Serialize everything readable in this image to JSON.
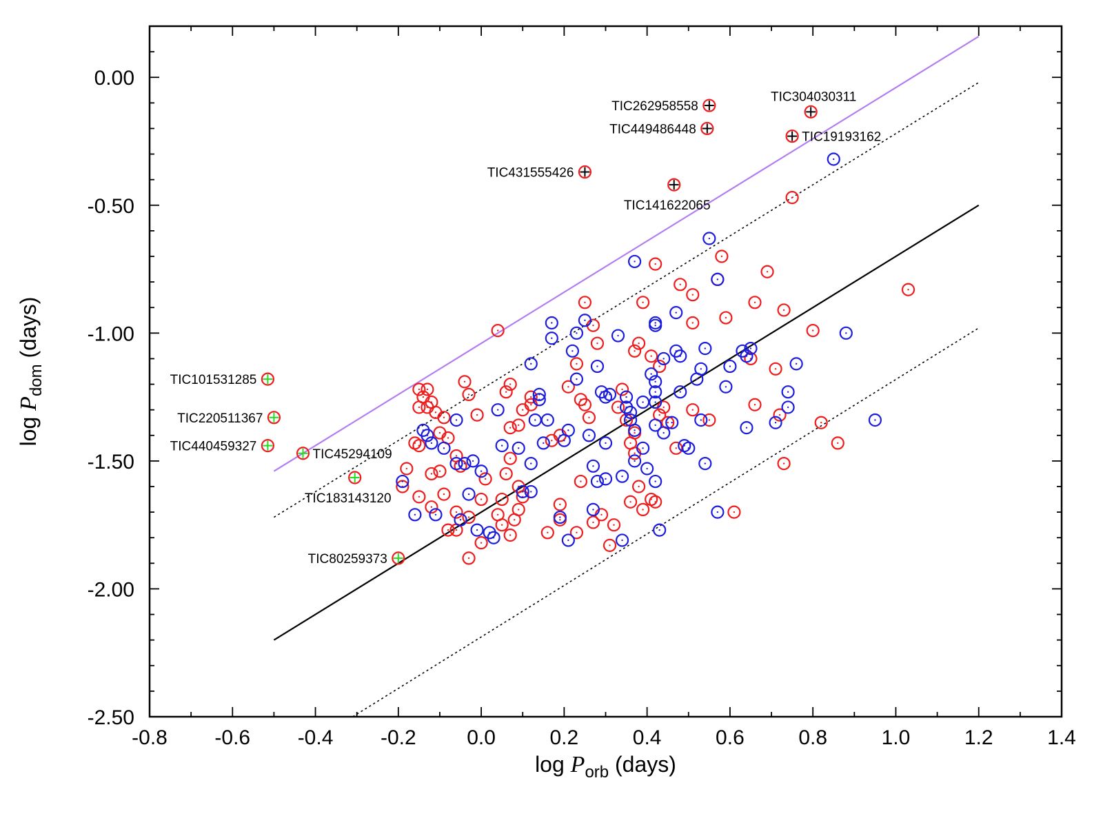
{
  "chart_data": {
    "type": "scatter",
    "title": "",
    "xlabel": {
      "prefix": "log ",
      "variable": "P",
      "subscript": "orb",
      "suffix": " (days)"
    },
    "ylabel": {
      "prefix": "log ",
      "variable": "P",
      "subscript": "dom",
      "suffix": " (days)"
    },
    "xlim": [
      -0.8,
      1.4
    ],
    "ylim": [
      -2.5,
      0.2
    ],
    "grid": false,
    "legend": "none",
    "x_ticks": [
      {
        "v": -0.8,
        "label": "-0.8"
      },
      {
        "v": -0.6,
        "label": "-0.6"
      },
      {
        "v": -0.4,
        "label": "-0.4"
      },
      {
        "v": -0.2,
        "label": "-0.2"
      },
      {
        "v": 0.0,
        "label": "0.0"
      },
      {
        "v": 0.2,
        "label": "0.2"
      },
      {
        "v": 0.4,
        "label": "0.4"
      },
      {
        "v": 0.6,
        "label": "0.6"
      },
      {
        "v": 0.8,
        "label": "0.8"
      },
      {
        "v": 1.0,
        "label": "1.0"
      },
      {
        "v": 1.2,
        "label": "1.2"
      },
      {
        "v": 1.4,
        "label": "1.4"
      }
    ],
    "y_ticks": [
      {
        "v": 0.0,
        "label": "0.00"
      },
      {
        "v": -0.5,
        "label": "-0.50"
      },
      {
        "v": -1.0,
        "label": "-1.00"
      },
      {
        "v": -1.5,
        "label": "-1.50"
      },
      {
        "v": -2.0,
        "label": "-2.00"
      },
      {
        "v": -2.5,
        "label": "-2.50"
      }
    ],
    "colors": {
      "red": "#ee1c1c",
      "blue": "#1c1cdd",
      "purple": "#b27cf0",
      "green": "#22dd22",
      "black": "#000000"
    },
    "lines": [
      {
        "style": "solid",
        "color": "#000000",
        "points": [
          [
            -0.5,
            -2.2
          ],
          [
            1.2,
            -0.5
          ]
        ]
      },
      {
        "style": "dotted",
        "color": "#000000",
        "points": [
          [
            -0.5,
            -1.72
          ],
          [
            1.2,
            -0.02
          ]
        ]
      },
      {
        "style": "dotted",
        "color": "#000000",
        "points": [
          [
            -0.31,
            -2.5
          ],
          [
            1.2,
            -0.98
          ]
        ]
      },
      {
        "style": "solid",
        "color": "#b27cf0",
        "points": [
          [
            -0.5,
            -1.54
          ],
          [
            1.2,
            0.16
          ]
        ]
      }
    ],
    "series": [
      {
        "color": "#ee1c1c",
        "marker": "circle-dot",
        "points": [
          [
            0.04,
            -0.99
          ],
          [
            -0.15,
            -1.22
          ],
          [
            -0.14,
            -1.25
          ],
          [
            -0.13,
            -1.22
          ],
          [
            -0.12,
            -1.27
          ],
          [
            -0.15,
            -1.29
          ],
          [
            -0.13,
            -1.29
          ],
          [
            -0.11,
            -1.31
          ],
          [
            -0.09,
            -1.33
          ],
          [
            -0.16,
            -1.43
          ],
          [
            -0.15,
            -1.44
          ],
          [
            -0.1,
            -1.39
          ],
          [
            -0.08,
            -1.41
          ],
          [
            -0.12,
            -1.55
          ],
          [
            -0.1,
            -1.54
          ],
          [
            -0.06,
            -1.48
          ],
          [
            -0.05,
            -1.52
          ],
          [
            -0.18,
            -1.53
          ],
          [
            -0.19,
            -1.6
          ],
          [
            -0.15,
            -1.64
          ],
          [
            -0.12,
            -1.68
          ],
          [
            -0.09,
            -1.63
          ],
          [
            -0.06,
            -1.7
          ],
          [
            -0.03,
            -1.72
          ],
          [
            -0.08,
            -1.77
          ],
          [
            -0.06,
            -1.77
          ],
          [
            -0.04,
            -1.19
          ],
          [
            -0.03,
            -1.24
          ],
          [
            -0.01,
            -1.32
          ],
          [
            0.0,
            -1.65
          ],
          [
            0.01,
            -1.57
          ],
          [
            0.0,
            -1.82
          ],
          [
            -0.03,
            -1.88
          ],
          [
            0.04,
            -1.71
          ],
          [
            0.05,
            -1.65
          ],
          [
            0.06,
            -1.55
          ],
          [
            0.07,
            -1.49
          ],
          [
            0.06,
            -1.23
          ],
          [
            0.07,
            -1.2
          ],
          [
            0.07,
            -1.37
          ],
          [
            0.09,
            -1.36
          ],
          [
            0.09,
            -1.6
          ],
          [
            0.09,
            -1.69
          ],
          [
            0.1,
            -1.64
          ],
          [
            0.1,
            -1.3
          ],
          [
            0.12,
            -1.25
          ],
          [
            0.12,
            -1.28
          ],
          [
            0.05,
            -1.75
          ],
          [
            0.07,
            -1.79
          ],
          [
            0.08,
            -1.73
          ],
          [
            0.16,
            -1.78
          ],
          [
            0.17,
            -1.42
          ],
          [
            0.19,
            -1.4
          ],
          [
            0.19,
            -1.67
          ],
          [
            0.19,
            -1.73
          ],
          [
            0.23,
            -1.78
          ],
          [
            0.24,
            -1.58
          ],
          [
            0.27,
            -1.74
          ],
          [
            0.29,
            -1.71
          ],
          [
            0.31,
            -1.83
          ],
          [
            0.32,
            -1.75
          ],
          [
            0.21,
            -1.21
          ],
          [
            0.23,
            -1.12
          ],
          [
            0.24,
            -1.26
          ],
          [
            0.25,
            -1.28
          ],
          [
            0.26,
            -1.33
          ],
          [
            0.25,
            -0.88
          ],
          [
            0.27,
            -0.97
          ],
          [
            0.28,
            -1.04
          ],
          [
            0.34,
            -1.22
          ],
          [
            0.33,
            -1.29
          ],
          [
            0.35,
            -1.34
          ],
          [
            0.36,
            -1.43
          ],
          [
            0.37,
            -1.07
          ],
          [
            0.38,
            -1.04
          ],
          [
            0.37,
            -1.39
          ],
          [
            0.37,
            -1.47
          ],
          [
            0.38,
            -1.6
          ],
          [
            0.36,
            -1.66
          ],
          [
            0.39,
            -1.69
          ],
          [
            0.41,
            -1.65
          ],
          [
            0.42,
            -1.66
          ],
          [
            0.42,
            -0.73
          ],
          [
            0.39,
            -0.88
          ],
          [
            0.41,
            -1.09
          ],
          [
            0.43,
            -1.13
          ],
          [
            0.44,
            -1.29
          ],
          [
            0.43,
            -1.32
          ],
          [
            0.45,
            -1.35
          ],
          [
            0.47,
            -1.45
          ],
          [
            0.48,
            -0.81
          ],
          [
            0.51,
            -0.85
          ],
          [
            0.51,
            -0.96
          ],
          [
            0.51,
            -1.3
          ],
          [
            0.55,
            -1.34
          ],
          [
            0.57,
            -0.79
          ],
          [
            0.58,
            -0.7
          ],
          [
            0.59,
            -0.94
          ],
          [
            0.65,
            -1.1
          ],
          [
            0.66,
            -0.88
          ],
          [
            0.66,
            -1.28
          ],
          [
            0.61,
            -1.7
          ],
          [
            0.69,
            -0.76
          ],
          [
            0.71,
            -1.14
          ],
          [
            0.72,
            -1.32
          ],
          [
            0.73,
            -0.91
          ],
          [
            0.73,
            -1.51
          ],
          [
            0.75,
            -0.47
          ],
          [
            0.8,
            -0.99
          ],
          [
            0.82,
            -1.35
          ],
          [
            0.86,
            -1.43
          ],
          [
            1.03,
            -0.83
          ]
        ]
      },
      {
        "color": "#1c1cdd",
        "marker": "circle-dot",
        "points": [
          [
            -0.19,
            -1.58
          ],
          [
            -0.16,
            -1.71
          ],
          [
            -0.14,
            -1.38
          ],
          [
            -0.13,
            -1.4
          ],
          [
            -0.12,
            -1.43
          ],
          [
            -0.11,
            -1.71
          ],
          [
            -0.09,
            -1.45
          ],
          [
            -0.06,
            -1.34
          ],
          [
            -0.06,
            -1.51
          ],
          [
            -0.05,
            -1.73
          ],
          [
            -0.04,
            -1.51
          ],
          [
            -0.03,
            -1.63
          ],
          [
            -0.02,
            -1.5
          ],
          [
            -0.01,
            -1.77
          ],
          [
            0.0,
            -1.54
          ],
          [
            0.02,
            -1.78
          ],
          [
            0.03,
            -1.8
          ],
          [
            0.04,
            -1.3
          ],
          [
            0.05,
            -1.44
          ],
          [
            0.09,
            -1.45
          ],
          [
            0.1,
            -1.62
          ],
          [
            0.12,
            -1.51
          ],
          [
            0.12,
            -1.62
          ],
          [
            0.12,
            -1.12
          ],
          [
            0.13,
            -1.34
          ],
          [
            0.14,
            -1.24
          ],
          [
            0.14,
            -1.26
          ],
          [
            0.15,
            -1.43
          ],
          [
            0.16,
            -1.34
          ],
          [
            0.17,
            -1.02
          ],
          [
            0.17,
            -0.96
          ],
          [
            0.19,
            -1.72
          ],
          [
            0.2,
            -1.42
          ],
          [
            0.21,
            -1.38
          ],
          [
            0.21,
            -1.81
          ],
          [
            0.22,
            -1.07
          ],
          [
            0.23,
            -1.18
          ],
          [
            0.23,
            -1.0
          ],
          [
            0.25,
            -0.95
          ],
          [
            0.26,
            -1.4
          ],
          [
            0.27,
            -1.52
          ],
          [
            0.27,
            -1.69
          ],
          [
            0.28,
            -1.58
          ],
          [
            0.28,
            -1.13
          ],
          [
            0.29,
            -1.23
          ],
          [
            0.3,
            -1.25
          ],
          [
            0.31,
            -1.24
          ],
          [
            0.3,
            -1.43
          ],
          [
            0.3,
            -1.57
          ],
          [
            0.33,
            -1.01
          ],
          [
            0.34,
            -1.56
          ],
          [
            0.34,
            -1.81
          ],
          [
            0.35,
            -1.25
          ],
          [
            0.35,
            -1.29
          ],
          [
            0.36,
            -1.31
          ],
          [
            0.36,
            -1.34
          ],
          [
            0.37,
            -0.72
          ],
          [
            0.37,
            -1.38
          ],
          [
            0.37,
            -1.5
          ],
          [
            0.39,
            -1.27
          ],
          [
            0.39,
            -1.45
          ],
          [
            0.4,
            -1.53
          ],
          [
            0.41,
            -1.16
          ],
          [
            0.42,
            -0.96
          ],
          [
            0.42,
            -0.97
          ],
          [
            0.42,
            -1.19
          ],
          [
            0.42,
            -1.23
          ],
          [
            0.42,
            -1.27
          ],
          [
            0.42,
            -1.36
          ],
          [
            0.42,
            -1.58
          ],
          [
            0.43,
            -1.77
          ],
          [
            0.44,
            -1.1
          ],
          [
            0.44,
            -1.39
          ],
          [
            0.46,
            -1.35
          ],
          [
            0.47,
            -0.92
          ],
          [
            0.47,
            -1.07
          ],
          [
            0.48,
            -1.09
          ],
          [
            0.48,
            -1.23
          ],
          [
            0.49,
            -1.44
          ],
          [
            0.5,
            -1.45
          ],
          [
            0.52,
            -1.18
          ],
          [
            0.53,
            -1.14
          ],
          [
            0.53,
            -1.34
          ],
          [
            0.54,
            -1.06
          ],
          [
            0.54,
            -1.51
          ],
          [
            0.55,
            -0.63
          ],
          [
            0.57,
            -0.79
          ],
          [
            0.57,
            -1.7
          ],
          [
            0.59,
            -1.21
          ],
          [
            0.6,
            -1.13
          ],
          [
            0.63,
            -1.07
          ],
          [
            0.64,
            -1.09
          ],
          [
            0.64,
            -1.37
          ],
          [
            0.65,
            -1.06
          ],
          [
            0.71,
            -1.35
          ],
          [
            0.74,
            -1.23
          ],
          [
            0.74,
            -1.29
          ],
          [
            0.76,
            -1.12
          ],
          [
            0.85,
            -0.32
          ],
          [
            0.88,
            -1.0
          ],
          [
            0.95,
            -1.34
          ]
        ]
      }
    ],
    "annotated": [
      {
        "label": "TIC262958558",
        "x": 0.55,
        "y": -0.11,
        "fill": "#ee1c1c",
        "cross": "#000000",
        "label_side": "left"
      },
      {
        "label": "TIC449486448",
        "x": 0.545,
        "y": -0.2,
        "fill": "#ee1c1c",
        "cross": "#000000",
        "label_side": "left"
      },
      {
        "label": "TIC304030311",
        "x": 0.795,
        "y": -0.135,
        "fill": "#ee1c1c",
        "cross": "#000000",
        "label_side": "above"
      },
      {
        "label": "TIC19193162",
        "x": 0.75,
        "y": -0.23,
        "fill": "#ee1c1c",
        "cross": "#000000",
        "label_side": "right"
      },
      {
        "label": "TIC431555426",
        "x": 0.25,
        "y": -0.37,
        "fill": "#ee1c1c",
        "cross": "#000000",
        "label_side": "left"
      },
      {
        "label": "TIC141622065",
        "x": 0.465,
        "y": -0.42,
        "fill": "#ee1c1c",
        "cross": "#000000",
        "label_side": "below"
      },
      {
        "label": "TIC101531285",
        "x": -0.515,
        "y": -1.18,
        "fill": "#ee1c1c",
        "cross": "#22dd22",
        "label_side": "left"
      },
      {
        "label": "TIC220511367",
        "x": -0.5,
        "y": -1.33,
        "fill": "#ee1c1c",
        "cross": "#22dd22",
        "label_side": "left"
      },
      {
        "label": "TIC440459327",
        "x": -0.515,
        "y": -1.44,
        "fill": "#ee1c1c",
        "cross": "#22dd22",
        "label_side": "left"
      },
      {
        "label": "TIC45294109",
        "x": -0.43,
        "y": -1.47,
        "fill": "#ee1c1c",
        "cross": "#22dd22",
        "label_side": "right"
      },
      {
        "label": "TIC183143120",
        "x": -0.305,
        "y": -1.565,
        "fill": "#ee1c1c",
        "cross": "#22dd22",
        "label_side": "below"
      },
      {
        "label": "TIC80259373",
        "x": -0.2,
        "y": -1.88,
        "fill": "#ee1c1c",
        "cross": "#22dd22",
        "label_side": "left"
      }
    ]
  }
}
